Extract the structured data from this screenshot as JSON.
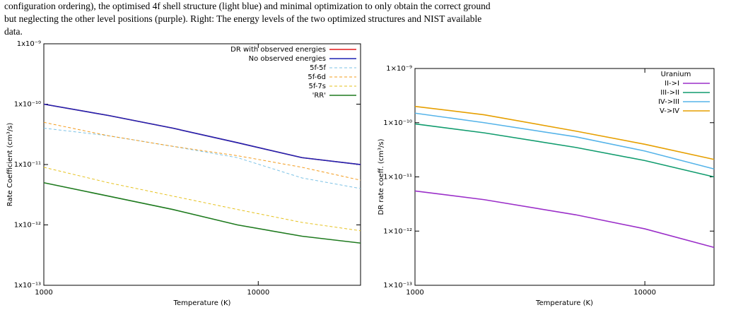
{
  "caption_lines": [
    "configuration ordering), the optimised 4f shell structure (light blue) and minimal optimization to only obtain the correct ground",
    "but neglecting the other level positions (purple). Right: The energy levels of the two optimized structures and NIST available",
    "data."
  ],
  "chart_data": [
    {
      "type": "line",
      "xlabel": "Temperature (K)",
      "ylabel": "Rate Coefficient (cm³/s)",
      "xscale": "log",
      "yscale": "log",
      "legend": "upper right",
      "xlim": [
        1000,
        30000
      ],
      "ylim": [
        1e-13,
        1e-09
      ],
      "xticks": [
        1000,
        10000
      ],
      "yticks": [
        {
          "value": 1e-13,
          "label": "1x10⁻¹³"
        },
        {
          "value": 1e-12,
          "label": "1x10⁻¹²"
        },
        {
          "value": 1e-11,
          "label": "1x10⁻¹¹"
        },
        {
          "value": 1e-10,
          "label": "1x10⁻¹⁰"
        },
        {
          "value": 1e-09,
          "label": "1x10⁻⁹"
        }
      ],
      "x": [
        1000,
        2000,
        4000,
        8000,
        16000,
        30000
      ],
      "series": [
        {
          "name": "DR with observed energies",
          "color": "#e41a1c",
          "linestyle": "solid",
          "values": [
            1e-10,
            6.5e-11,
            4e-11,
            2.3e-11,
            1.3e-11,
            1e-11
          ]
        },
        {
          "name": "No observed energies",
          "color": "#1f24b4",
          "linestyle": "solid",
          "values": [
            1e-10,
            6.5e-11,
            4e-11,
            2.3e-11,
            1.3e-11,
            1e-11
          ]
        },
        {
          "name": "5f-5f",
          "color": "#7ec3e6",
          "linestyle": "dashed",
          "values": [
            4e-11,
            3e-11,
            2e-11,
            1.3e-11,
            6e-12,
            4e-12
          ]
        },
        {
          "name": "5f-6d",
          "color": "#f39c1e",
          "linestyle": "dashed",
          "values": [
            5e-11,
            3e-11,
            2e-11,
            1.4e-11,
            9e-12,
            5.5e-12
          ]
        },
        {
          "name": "5f-7s",
          "color": "#e6c21e",
          "linestyle": "dashed",
          "values": [
            9e-12,
            5e-12,
            3e-12,
            1.8e-12,
            1.1e-12,
            8e-13
          ]
        },
        {
          "name": "'RR'",
          "color": "#1e7a1e",
          "linestyle": "solid",
          "values": [
            5e-12,
            3e-12,
            1.8e-12,
            1e-12,
            6.5e-13,
            5e-13
          ]
        }
      ]
    },
    {
      "type": "line",
      "xlabel": "Temperature (K)",
      "ylabel": "DR rate coeff. (cm³/s)",
      "xscale": "log",
      "yscale": "log",
      "legend": "upper right",
      "legend_title": "Uranium",
      "xlim": [
        1000,
        20000
      ],
      "ylim": [
        1e-13,
        1e-09
      ],
      "xticks": [
        1000,
        10000
      ],
      "yticks": [
        {
          "value": 1e-13,
          "label": "1×10⁻¹³"
        },
        {
          "value": 1e-12,
          "label": "1×10⁻¹²"
        },
        {
          "value": 1e-11,
          "label": "1×10⁻¹¹"
        },
        {
          "value": 1e-10,
          "label": "1×10⁻¹⁰"
        },
        {
          "value": 1e-09,
          "label": "1×10⁻⁹"
        }
      ],
      "x": [
        1000,
        2000,
        5000,
        10000,
        20000
      ],
      "series": [
        {
          "name": "II->I",
          "color": "#9b2fc9",
          "linestyle": "solid",
          "values": [
            5.5e-12,
            3.8e-12,
            2e-12,
            1.1e-12,
            5e-13
          ]
        },
        {
          "name": "III->II",
          "color": "#119c6e",
          "linestyle": "solid",
          "values": [
            9.5e-11,
            6.5e-11,
            3.5e-11,
            2e-11,
            1e-11
          ]
        },
        {
          "name": "IV->III",
          "color": "#56b4e9",
          "linestyle": "solid",
          "values": [
            1.5e-10,
            1e-10,
            5.5e-11,
            3e-11,
            1.4e-11
          ]
        },
        {
          "name": "V->IV",
          "color": "#e69f00",
          "linestyle": "solid",
          "values": [
            2e-10,
            1.4e-10,
            7e-11,
            4e-11,
            2.1e-11
          ]
        }
      ]
    }
  ]
}
